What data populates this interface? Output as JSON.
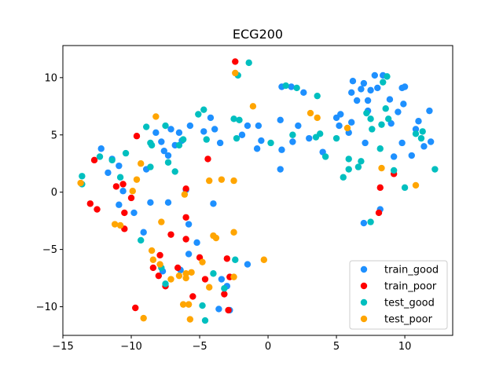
{
  "chart_data": {
    "type": "scatter",
    "title": "ECG200",
    "xlabel": "",
    "ylabel": "",
    "xlim": [
      -15,
      13.5
    ],
    "ylim": [
      -12.5,
      12.8
    ],
    "xticks": [
      -15,
      -10,
      -5,
      0,
      5,
      10
    ],
    "yticks": [
      -10,
      -5,
      0,
      5,
      10
    ],
    "xtick_labels": [
      "−15",
      "−10",
      "−5",
      "0",
      "5",
      "10"
    ],
    "ytick_labels": [
      "−10",
      "−5",
      "0",
      "5",
      "10"
    ],
    "grid": false,
    "legend": "lower-right",
    "series": [
      {
        "name": "train_good",
        "color": "#1e90ff",
        "points": [
          [
            -12.2,
            3.8
          ],
          [
            -11.7,
            1.7
          ],
          [
            -11.4,
            2.9
          ],
          [
            -10.9,
            2.3
          ],
          [
            -10.6,
            0.1
          ],
          [
            -10.9,
            -1.1
          ],
          [
            -9.8,
            -1.8
          ],
          [
            -9.1,
            -3.5
          ],
          [
            -8.6,
            -0.9
          ],
          [
            -8.9,
            2.0
          ],
          [
            -8.2,
            5.2
          ],
          [
            -7.8,
            4.4
          ],
          [
            -7.6,
            3.6
          ],
          [
            -7.1,
            5.5
          ],
          [
            -7.3,
            3.2
          ],
          [
            -6.8,
            4.1
          ],
          [
            -6.5,
            5.2
          ],
          [
            -6.3,
            4.5
          ],
          [
            -6.0,
            0.2
          ],
          [
            -5.7,
            5.8
          ],
          [
            -5.2,
            -4.4
          ],
          [
            -4.7,
            5.3
          ],
          [
            -4.2,
            6.5
          ],
          [
            -3.9,
            5.5
          ],
          [
            -3.5,
            4.3
          ],
          [
            -4.0,
            -1.0
          ],
          [
            -3.0,
            -8.2
          ],
          [
            -1.5,
            -6.3
          ],
          [
            -1.5,
            5.8
          ],
          [
            -0.8,
            3.8
          ],
          [
            -0.5,
            4.5
          ],
          [
            -0.7,
            5.8
          ],
          [
            -1.9,
            5.0
          ],
          [
            0.9,
            2.0
          ],
          [
            1.0,
            9.2
          ],
          [
            0.9,
            6.3
          ],
          [
            1.0,
            3.7
          ],
          [
            1.7,
            9.2
          ],
          [
            1.8,
            4.4
          ],
          [
            2.2,
            5.8
          ],
          [
            2.6,
            8.7
          ],
          [
            3.0,
            4.7
          ],
          [
            4.0,
            3.5
          ],
          [
            5.0,
            6.5
          ],
          [
            5.2,
            5.8
          ],
          [
            5.3,
            6.8
          ],
          [
            5.9,
            5.2
          ],
          [
            6.1,
            8.7
          ],
          [
            6.1,
            6.1
          ],
          [
            6.2,
            9.7
          ],
          [
            6.5,
            8.0
          ],
          [
            6.8,
            9.0
          ],
          [
            7.0,
            9.5
          ],
          [
            7.1,
            4.3
          ],
          [
            7.3,
            8.0
          ],
          [
            7.3,
            7.1
          ],
          [
            7.5,
            8.9
          ],
          [
            7.8,
            10.2
          ],
          [
            8.0,
            9.1
          ],
          [
            8.2,
            -1.5
          ],
          [
            8.4,
            10.2
          ],
          [
            8.9,
            8.1
          ],
          [
            9.0,
            6.0
          ],
          [
            9.2,
            3.1
          ],
          [
            9.5,
            7.0
          ],
          [
            9.8,
            4.3
          ],
          [
            9.9,
            7.7
          ],
          [
            9.8,
            9.1
          ],
          [
            10.0,
            9.2
          ],
          [
            10.5,
            3.2
          ],
          [
            10.8,
            5.5
          ],
          [
            11.0,
            6.2
          ],
          [
            11.4,
            4.0
          ],
          [
            11.8,
            7.1
          ],
          [
            11.9,
            4.4
          ],
          [
            7.0,
            -2.7
          ],
          [
            -2.8,
            -10.3
          ],
          [
            -3.6,
            -10.2
          ],
          [
            -3.4,
            -7.6
          ],
          [
            -5.8,
            -5.4
          ],
          [
            -6.4,
            -6.8
          ],
          [
            -7.7,
            -6.9
          ],
          [
            -5.8,
            -2.8
          ],
          [
            -7.3,
            -0.9
          ]
        ]
      },
      {
        "name": "train_poor",
        "color": "#ff0000",
        "points": [
          [
            -12.7,
            2.8
          ],
          [
            -13.0,
            -1.0
          ],
          [
            -12.5,
            -1.5
          ],
          [
            -11.1,
            0.5
          ],
          [
            -10.6,
            0.7
          ],
          [
            -10.5,
            -1.8
          ],
          [
            -10.5,
            -3.2
          ],
          [
            -10.0,
            -0.5
          ],
          [
            -9.6,
            4.9
          ],
          [
            -9.7,
            -10.1
          ],
          [
            -8.4,
            -6.6
          ],
          [
            -8.0,
            -7.3
          ],
          [
            -7.9,
            -5.5
          ],
          [
            -7.5,
            -8.2
          ],
          [
            -7.1,
            -3.7
          ],
          [
            -6.6,
            -6.6
          ],
          [
            -6.0,
            -2.2
          ],
          [
            -6.0,
            -4.1
          ],
          [
            -6.0,
            0.3
          ],
          [
            -5.5,
            -9.1
          ],
          [
            -5.0,
            -5.7
          ],
          [
            -4.6,
            -7.6
          ],
          [
            -4.4,
            2.9
          ],
          [
            -3.0,
            -5.8
          ],
          [
            -2.4,
            11.4
          ],
          [
            -2.8,
            -7.4
          ],
          [
            -2.9,
            -10.3
          ],
          [
            -3.2,
            -8.9
          ],
          [
            9.2,
            1.6
          ],
          [
            8.2,
            0.4
          ],
          [
            8.1,
            -1.8
          ]
        ]
      },
      {
        "name": "test_good",
        "color": "#00bfbf",
        "points": [
          [
            -13.6,
            1.4
          ],
          [
            -13.6,
            0.7
          ],
          [
            -12.3,
            3.1
          ],
          [
            -11.4,
            2.8
          ],
          [
            -10.8,
            1.3
          ],
          [
            -10.4,
            3.4
          ],
          [
            -9.3,
            -4.2
          ],
          [
            -8.9,
            5.7
          ],
          [
            -8.6,
            2.2
          ],
          [
            -8.6,
            4.3
          ],
          [
            -8.5,
            4.1
          ],
          [
            -7.8,
            -6.6
          ],
          [
            -7.5,
            5.8
          ],
          [
            -7.5,
            -8.0
          ],
          [
            -7.3,
            2.6
          ],
          [
            -6.8,
            1.8
          ],
          [
            -6.5,
            4.1
          ],
          [
            -6.2,
            4.6
          ],
          [
            -5.1,
            6.8
          ],
          [
            -4.7,
            7.2
          ],
          [
            -4.5,
            4.6
          ],
          [
            -4.0,
            -7.1
          ],
          [
            -4.8,
            -9.9
          ],
          [
            -4.6,
            -11.2
          ],
          [
            -3.2,
            -8.4
          ],
          [
            -2.4,
            -5.9
          ],
          [
            -2.5,
            6.4
          ],
          [
            -2.1,
            6.3
          ],
          [
            -2.2,
            10.2
          ],
          [
            -1.4,
            11.3
          ],
          [
            -2.3,
            4.7
          ],
          [
            0.2,
            4.3
          ],
          [
            1.3,
            9.3
          ],
          [
            1.8,
            5.0
          ],
          [
            2.1,
            9.1
          ],
          [
            3.5,
            4.8
          ],
          [
            3.6,
            8.4
          ],
          [
            3.8,
            5.1
          ],
          [
            4.2,
            3.1
          ],
          [
            5.0,
            4.7
          ],
          [
            5.5,
            1.3
          ],
          [
            5.9,
            2.9
          ],
          [
            5.9,
            2.0
          ],
          [
            6.6,
            2.2
          ],
          [
            6.8,
            2.7
          ],
          [
            7.2,
            6.9
          ],
          [
            7.5,
            -2.6
          ],
          [
            7.6,
            5.5
          ],
          [
            8.2,
            3.8
          ],
          [
            8.3,
            5.9
          ],
          [
            8.7,
            10.1
          ],
          [
            8.8,
            6.4
          ],
          [
            8.6,
            7.3
          ],
          [
            9.2,
            1.9
          ],
          [
            10.0,
            0.4
          ],
          [
            10.8,
            5.1
          ],
          [
            11.3,
            5.3
          ],
          [
            11.2,
            4.7
          ],
          [
            12.2,
            2.0
          ],
          [
            7.5,
            6.4
          ],
          [
            8.4,
            9.6
          ]
        ]
      },
      {
        "name": "test_poor",
        "color": "#ffa500",
        "points": [
          [
            -13.7,
            0.8
          ],
          [
            -11.2,
            -2.8
          ],
          [
            -10.8,
            -2.9
          ],
          [
            -9.9,
            0.1
          ],
          [
            -9.6,
            1.1
          ],
          [
            -9.3,
            2.5
          ],
          [
            -9.1,
            -11.0
          ],
          [
            -8.5,
            -5.1
          ],
          [
            -8.4,
            -5.9
          ],
          [
            -8.2,
            6.6
          ],
          [
            -7.9,
            -6.3
          ],
          [
            -7.8,
            -2.6
          ],
          [
            -7.1,
            -7.6
          ],
          [
            -6.5,
            -7.3
          ],
          [
            -6.2,
            -9.8
          ],
          [
            -6.0,
            -7.1
          ],
          [
            -6.0,
            -7.5
          ],
          [
            -5.8,
            -9.8
          ],
          [
            -5.7,
            -11.1
          ],
          [
            -5.6,
            -7.0
          ],
          [
            -4.8,
            -6.1
          ],
          [
            -4.3,
            -8.3
          ],
          [
            -4.3,
            1.0
          ],
          [
            -4.0,
            -3.8
          ],
          [
            -3.8,
            -4.0
          ],
          [
            -3.4,
            1.1
          ],
          [
            -2.5,
            -3.5
          ],
          [
            -2.5,
            -7.4
          ],
          [
            -2.5,
            1.0
          ],
          [
            -2.4,
            10.4
          ],
          [
            -1.1,
            7.5
          ],
          [
            -0.3,
            -5.9
          ],
          [
            3.1,
            6.9
          ],
          [
            3.6,
            6.5
          ],
          [
            5.8,
            5.6
          ],
          [
            8.3,
            2.1
          ],
          [
            10.8,
            0.6
          ],
          [
            -6.1,
            -0.2
          ]
        ]
      }
    ]
  }
}
